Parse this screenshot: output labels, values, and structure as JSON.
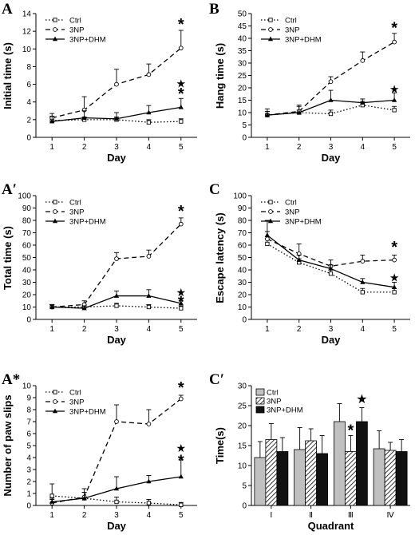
{
  "chart_data": [
    {
      "panel": "A",
      "type": "line",
      "xlabel": "Day",
      "ylabel": "Initial time (s)",
      "x": [
        1,
        2,
        3,
        4,
        5
      ],
      "xlim": [
        0.5,
        5.5
      ],
      "ylim": [
        0,
        14
      ],
      "yticks": [
        0,
        2,
        4,
        6,
        8,
        10,
        12,
        14
      ],
      "legend": "top-left",
      "series": [
        {
          "name": "Ctrl",
          "style": "dotted",
          "marker": "square",
          "values": [
            1.9,
            2.0,
            2.0,
            1.7,
            1.8
          ],
          "errors": [
            0.3,
            0.3,
            0.3,
            0.3,
            0.3
          ]
        },
        {
          "name": "3NP",
          "style": "dashed",
          "marker": "circle",
          "values": [
            2.2,
            3.1,
            6.0,
            7.1,
            10.1
          ],
          "errors": [
            0.5,
            1.5,
            1.7,
            1.2,
            2.0
          ]
        },
        {
          "name": "3NP+DHM",
          "style": "solid",
          "marker": "triangle",
          "values": [
            1.8,
            2.2,
            2.1,
            2.8,
            3.4
          ],
          "errors": [
            0.6,
            0.8,
            0.7,
            0.8,
            1.0
          ]
        }
      ],
      "annotations": [
        {
          "text": "*",
          "x": 5,
          "y": 12.9
        },
        {
          "text": "★",
          "x": 5,
          "y": 6.1
        },
        {
          "text": "*",
          "x": 5,
          "y": 5.0
        }
      ]
    },
    {
      "panel": "B",
      "type": "line",
      "xlabel": "Day",
      "ylabel": "Hang time (s)",
      "x": [
        1,
        2,
        3,
        4,
        5
      ],
      "xlim": [
        0.5,
        5.5
      ],
      "ylim": [
        0,
        50
      ],
      "yticks": [
        0,
        5,
        10,
        15,
        20,
        25,
        30,
        35,
        40,
        45,
        50
      ],
      "legend": "top-left",
      "series": [
        {
          "name": "Ctrl",
          "style": "dotted",
          "marker": "square",
          "values": [
            9.0,
            10.0,
            9.5,
            13.0,
            11.0
          ],
          "errors": [
            1.5,
            1.0,
            1.5,
            1.5,
            1.5
          ]
        },
        {
          "name": "3NP",
          "style": "dashed",
          "marker": "circle",
          "values": [
            9.0,
            10.5,
            22.5,
            31.0,
            38.5
          ],
          "errors": [
            1.5,
            2.0,
            2.0,
            3.5,
            3.5
          ]
        },
        {
          "name": "3NP+DHM",
          "style": "solid",
          "marker": "triangle",
          "values": [
            9.0,
            10.0,
            15.0,
            14.0,
            15.0
          ],
          "errors": [
            2.5,
            3.0,
            4.0,
            1.5,
            3.0
          ]
        }
      ],
      "annotations": [
        {
          "text": "*",
          "x": 5,
          "y": 44.5
        },
        {
          "text": "★",
          "x": 5,
          "y": 19.5
        }
      ]
    },
    {
      "panel": "A′",
      "type": "line",
      "xlabel": "Day",
      "ylabel": "Total time (s)",
      "x": [
        1,
        2,
        3,
        4,
        5
      ],
      "xlim": [
        0.5,
        5.5
      ],
      "ylim": [
        0,
        100
      ],
      "yticks": [
        0,
        10,
        20,
        30,
        40,
        50,
        60,
        70,
        80,
        90,
        100
      ],
      "legend": "top-left",
      "series": [
        {
          "name": "Ctrl",
          "style": "dotted",
          "marker": "square",
          "values": [
            10,
            10,
            11,
            10,
            9
          ],
          "errors": [
            2,
            2,
            2,
            2,
            2
          ]
        },
        {
          "name": "3NP",
          "style": "dashed",
          "marker": "circle",
          "values": [
            10,
            12,
            49,
            51,
            77
          ],
          "errors": [
            2,
            3,
            5,
            5,
            5
          ]
        },
        {
          "name": "3NP+DHM",
          "style": "solid",
          "marker": "triangle",
          "values": [
            10,
            9,
            19,
            19,
            13
          ],
          "errors": [
            2,
            2,
            4,
            5,
            4
          ]
        }
      ],
      "annotations": [
        {
          "text": "*",
          "x": 5,
          "y": 88
        },
        {
          "text": "★",
          "x": 5,
          "y": 22
        },
        {
          "text": "*",
          "x": 5,
          "y": 15
        }
      ]
    },
    {
      "panel": "C",
      "type": "line",
      "xlabel": "Day",
      "ylabel": "Escape latency (s)",
      "x": [
        1,
        2,
        3,
        4,
        5
      ],
      "xlim": [
        0.5,
        5.5
      ],
      "ylim": [
        0,
        100
      ],
      "yticks": [
        0,
        10,
        20,
        30,
        40,
        50,
        60,
        70,
        80,
        90,
        100
      ],
      "legend": "top-left",
      "series": [
        {
          "name": "Ctrl",
          "style": "dotted",
          "marker": "square",
          "values": [
            61,
            46,
            37,
            22,
            22
          ],
          "errors": [
            6,
            3,
            3,
            3,
            3
          ]
        },
        {
          "name": "3NP",
          "style": "dashed",
          "marker": "circle",
          "values": [
            65,
            53,
            43,
            47,
            48
          ],
          "errors": [
            6,
            8,
            5,
            5,
            4
          ]
        },
        {
          "name": "3NP+DHM",
          "style": "solid",
          "marker": "triangle",
          "values": [
            68,
            48,
            41,
            30,
            26
          ],
          "errors": [
            12,
            4,
            3,
            3,
            4
          ]
        }
      ],
      "annotations": [
        {
          "text": "*",
          "x": 5,
          "y": 59
        },
        {
          "text": "★",
          "x": 5,
          "y": 34
        }
      ]
    },
    {
      "panel": "A*",
      "type": "line",
      "xlabel": "Day",
      "ylabel": "Number of paw slips",
      "x": [
        1,
        2,
        3,
        4,
        5
      ],
      "xlim": [
        0.5,
        5.5
      ],
      "ylim": [
        0,
        10
      ],
      "yticks": [
        0,
        1,
        2,
        3,
        4,
        5,
        6,
        7,
        8,
        9,
        10
      ],
      "legend": "top-left",
      "series": [
        {
          "name": "Ctrl",
          "style": "dotted",
          "marker": "square",
          "values": [
            0.8,
            0.6,
            0.3,
            0.2,
            0.05
          ],
          "errors": [
            1.0,
            0.5,
            0.4,
            0.3,
            0.2
          ]
        },
        {
          "name": "3NP",
          "style": "dashed",
          "marker": "circle",
          "values": [
            0.2,
            0.7,
            7.0,
            6.8,
            8.9
          ],
          "errors": [
            0.3,
            0.7,
            1.4,
            1.2,
            0.3
          ]
        },
        {
          "name": "3NP+DHM",
          "style": "solid",
          "marker": "triangle",
          "values": [
            0.3,
            0.6,
            1.4,
            2.0,
            2.4
          ],
          "errors": [
            0.3,
            0.5,
            1.0,
            0.5,
            1.4
          ]
        }
      ],
      "annotations": [
        {
          "text": "*",
          "x": 5,
          "y": 9.9
        },
        {
          "text": "★",
          "x": 5,
          "y": 4.8
        },
        {
          "text": "*",
          "x": 5,
          "y": 3.8
        }
      ]
    },
    {
      "panel": "C′",
      "type": "bar",
      "xlabel": "Quadrant",
      "ylabel": "Time(s)",
      "categories": [
        "Ⅰ",
        "Ⅱ",
        "Ⅲ",
        "Ⅳ"
      ],
      "ylim": [
        0,
        30
      ],
      "yticks": [
        0,
        5,
        10,
        15,
        20,
        25,
        30
      ],
      "legend": "top-left",
      "series": [
        {
          "name": "Ctrl",
          "fill": "#c0c0c0",
          "pattern": "none",
          "values": [
            12.0,
            14.0,
            21.0,
            14.2
          ],
          "errors": [
            4.0,
            5.5,
            4.5,
            4.5
          ]
        },
        {
          "name": "3NP",
          "fill": "#ffffff",
          "pattern": "hatch",
          "values": [
            16.5,
            16.2,
            13.5,
            13.8
          ],
          "errors": [
            4.0,
            3.0,
            4.0,
            2.0
          ]
        },
        {
          "name": "3NP+DHM",
          "fill": "#111111",
          "pattern": "solid",
          "values": [
            13.5,
            13.0,
            21.0,
            13.5
          ],
          "errors": [
            3.5,
            4.5,
            3.5,
            3.0
          ]
        }
      ],
      "annotations": [
        {
          "text": "*",
          "x": "Ⅲ",
          "series": "3NP",
          "y": 19.0
        },
        {
          "text": "★",
          "x": "Ⅲ",
          "series": "3NP+DHM",
          "y": 26.5
        }
      ]
    }
  ]
}
